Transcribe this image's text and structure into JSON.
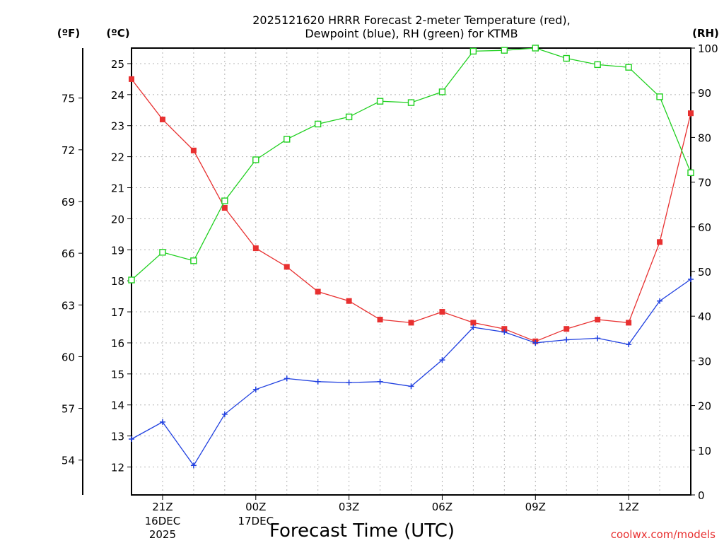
{
  "chart_data": {
    "type": "line",
    "title_line1": "2025121620 HRRR Forecast 2-meter Temperature (red),",
    "title_line2": "Dewpoint (blue), RH (green) for KTMB",
    "xlabel": "Forecast Time (UTC)",
    "credit": "coolwx.com/models",
    "units": {
      "fahrenheit": "(ºF)",
      "celsius": "(ºC)",
      "rh": "(RH)"
    },
    "x_hours": [
      20,
      21,
      22,
      23,
      24,
      25,
      26,
      27,
      28,
      29,
      30,
      31,
      32,
      33,
      34,
      35,
      36,
      37,
      38
    ],
    "x_ticks": [
      {
        "hour": 21,
        "line1": "21Z",
        "line2": "16DEC",
        "line3": "2025"
      },
      {
        "hour": 24,
        "line1": "00Z",
        "line2": "17DEC",
        "line3": ""
      },
      {
        "hour": 27,
        "line1": "03Z",
        "line2": "",
        "line3": ""
      },
      {
        "hour": 30,
        "line1": "06Z",
        "line2": "",
        "line3": ""
      },
      {
        "hour": 33,
        "line1": "09Z",
        "line2": "",
        "line3": ""
      },
      {
        "hour": 36,
        "line1": "12Z",
        "line2": "",
        "line3": ""
      }
    ],
    "celsius_range": [
      11.1,
      25.5
    ],
    "rh_range": [
      0,
      100
    ],
    "celsius_ticks": [
      "12",
      "13",
      "14",
      "15",
      "16",
      "17",
      "18",
      "19",
      "20",
      "21",
      "22",
      "23",
      "24",
      "25"
    ],
    "fahrenheit_ticks": [
      "54",
      "57",
      "60",
      "63",
      "66",
      "69",
      "72",
      "75"
    ],
    "rh_ticks": [
      "0",
      "10",
      "20",
      "30",
      "40",
      "50",
      "60",
      "70",
      "80",
      "90",
      "100"
    ],
    "series": [
      {
        "color": "#e83030",
        "marker": "filled-square",
        "axis": "celsius",
        "values": [
          24.5,
          23.2,
          22.2,
          20.35,
          19.05,
          18.45,
          17.65,
          17.35,
          16.75,
          16.65,
          17.0,
          16.65,
          16.45,
          16.05,
          16.45,
          16.75,
          16.65,
          19.25,
          23.4
        ]
      },
      {
        "color": "#2040e0",
        "marker": "plus",
        "axis": "celsius",
        "values": [
          12.9,
          13.45,
          12.05,
          13.7,
          14.5,
          14.85,
          14.75,
          14.72,
          14.75,
          14.6,
          15.45,
          16.5,
          16.35,
          16.0,
          16.1,
          16.15,
          15.95,
          17.35,
          18.05
        ]
      },
      {
        "color": "#20d020",
        "marker": "open-square",
        "axis": "rh",
        "values": [
          48.1,
          54.3,
          52.4,
          65.8,
          75.0,
          79.6,
          83.0,
          84.6,
          88.1,
          87.8,
          90.2,
          99.3,
          99.5,
          100.0,
          97.7,
          96.3,
          95.7,
          89.1,
          72.1
        ]
      }
    ]
  }
}
